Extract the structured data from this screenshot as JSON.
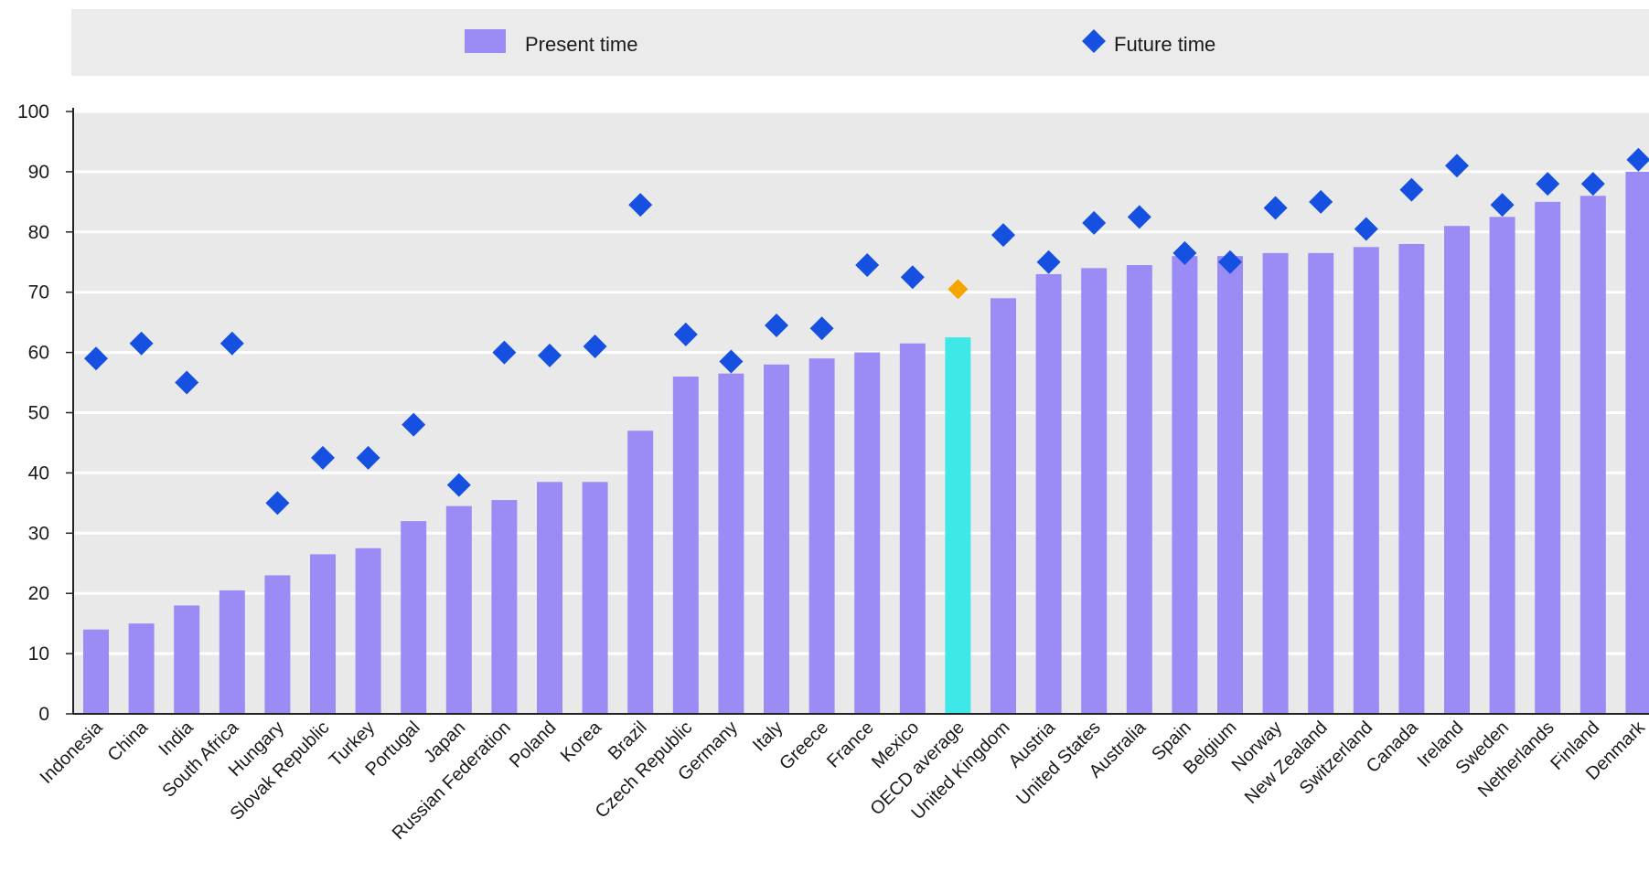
{
  "chart_data": {
    "type": "bar",
    "categories": [
      "Indonesia",
      "China",
      "India",
      "South Africa",
      "Hungary",
      "Slovak Republic",
      "Turkey",
      "Portugal",
      "Japan",
      "Russian Federation",
      "Poland",
      "Korea",
      "Brazil",
      "Czech Republic",
      "Germany",
      "Italy",
      "Greece",
      "France",
      "Mexico",
      "OECD average",
      "United Kingdom",
      "Austria",
      "United States",
      "Australia",
      "Spain",
      "Belgium",
      "Norway",
      "New Zealand",
      "Switzerland",
      "Canada",
      "Ireland",
      "Sweden",
      "Netherlands",
      "Finland",
      "Denmark"
    ],
    "series": [
      {
        "name": "Present time",
        "type": "bar",
        "values": [
          14,
          15,
          18,
          20.5,
          23,
          26.5,
          27.5,
          32,
          34.5,
          35.5,
          38.5,
          38.5,
          47,
          56,
          56.5,
          58,
          59,
          60,
          61.5,
          62.5,
          69,
          73,
          74,
          74.5,
          76,
          76,
          76.5,
          76.5,
          77.5,
          78,
          81,
          82.5,
          85,
          86,
          90
        ]
      },
      {
        "name": "Future time",
        "type": "scatter",
        "values": [
          59,
          61.5,
          55,
          61.5,
          35,
          42.5,
          42.5,
          48,
          38,
          60,
          59.5,
          61,
          84.5,
          63,
          58.5,
          64.5,
          64,
          74.5,
          72.5,
          70.5,
          79.5,
          75,
          81.5,
          82.5,
          76.5,
          75,
          84,
          85,
          80.5,
          87,
          91,
          84.5,
          88,
          88,
          92
        ]
      }
    ],
    "highlight_category": "OECD average",
    "ylim": [
      0,
      100
    ],
    "yticks": [
      0,
      10,
      20,
      30,
      40,
      50,
      60,
      70,
      80,
      90,
      100
    ],
    "grid": true,
    "legend_position": "top",
    "colors": {
      "bar": "#9b8cf5",
      "bar_highlight": "#3ee8e6",
      "marker": "#1550e0",
      "marker_highlight": "#f5a500",
      "plot_background": "#e9e9e9",
      "gridline": "#ffffff",
      "axis": "#222222"
    }
  }
}
